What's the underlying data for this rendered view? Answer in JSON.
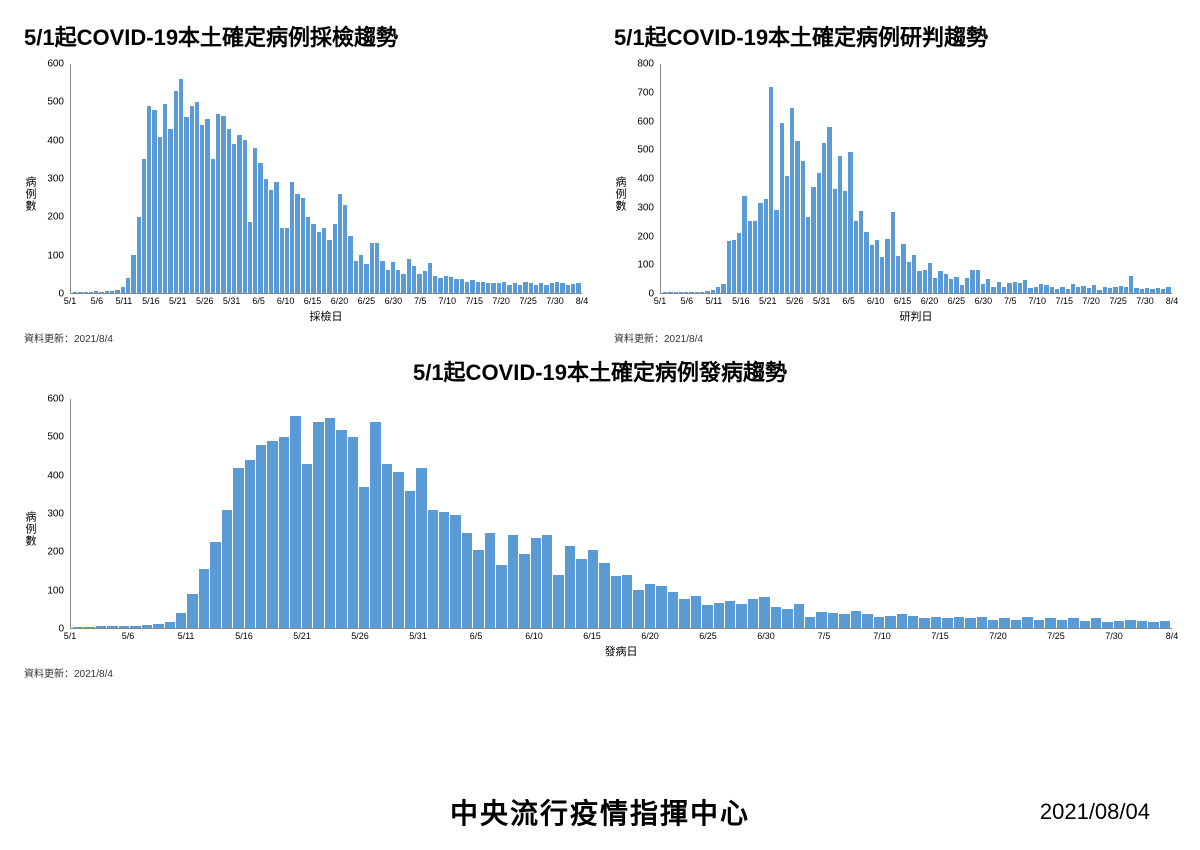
{
  "colors": {
    "bar": "#5b9bd5",
    "axis": "#888888",
    "background": "#ffffff",
    "text": "#000000"
  },
  "x_categories": [
    "5/1",
    "5/6",
    "5/11",
    "5/16",
    "5/21",
    "5/26",
    "5/31",
    "6/5",
    "6/10",
    "6/15",
    "6/20",
    "6/25",
    "6/30",
    "7/5",
    "7/10",
    "7/15",
    "7/20",
    "7/25",
    "7/30",
    "8/4"
  ],
  "charts": {
    "sampling": {
      "title": "5/1起COVID-19本土確定病例採檢趨勢",
      "ylabel": "病例數",
      "xlabel": "採檢日",
      "ylim": [
        0,
        600
      ],
      "ytick_step": 100,
      "update": "資料更新：2021/8/4",
      "values": [
        2,
        3,
        2,
        3,
        4,
        3,
        4,
        5,
        8,
        15,
        40,
        100,
        200,
        350,
        490,
        480,
        410,
        495,
        430,
        530,
        560,
        460,
        490,
        500,
        440,
        455,
        350,
        470,
        465,
        430,
        390,
        415,
        400,
        185,
        380,
        340,
        300,
        270,
        290,
        170,
        170,
        290,
        260,
        250,
        200,
        180,
        160,
        170,
        140,
        180,
        260,
        230,
        150,
        85,
        100,
        75,
        130,
        130,
        85,
        60,
        80,
        60,
        50,
        90,
        70,
        50,
        58,
        78,
        45,
        40,
        45,
        42,
        38,
        38,
        30,
        35,
        28,
        30,
        25,
        27,
        25,
        28,
        22,
        25,
        20,
        30,
        25,
        22,
        25,
        20,
        25,
        28,
        25,
        20,
        23,
        25
      ]
    },
    "judgment": {
      "title": "5/1起COVID-19本土確定病例研判趨勢",
      "ylabel": "病例數",
      "xlabel": "研判日",
      "ylim": [
        0,
        800
      ],
      "ytick_step": 100,
      "update": "資料更新：2021/8/4",
      "values": [
        2,
        2,
        3,
        3,
        3,
        4,
        3,
        5,
        6,
        10,
        20,
        30,
        180,
        185,
        210,
        340,
        250,
        250,
        315,
        330,
        720,
        290,
        595,
        410,
        646,
        530,
        460,
        266,
        372,
        420,
        523,
        580,
        364,
        477,
        355,
        492,
        251,
        287,
        214,
        168,
        186,
        127,
        189,
        283,
        129,
        170,
        109,
        133,
        78,
        80,
        104,
        54,
        76,
        65,
        50,
        56,
        28,
        54,
        80,
        79,
        31,
        50,
        22,
        39,
        22,
        34,
        38,
        34,
        47,
        17,
        22,
        30,
        28,
        20,
        15,
        20,
        15,
        33,
        20,
        25,
        18,
        28,
        11,
        22,
        16,
        21,
        24,
        20,
        60,
        18,
        14,
        16,
        14,
        18,
        14,
        22
      ]
    },
    "onset": {
      "title": "5/1起COVID-19本土確定病例發病趨勢",
      "ylabel": "病例數",
      "xlabel": "發病日",
      "ylim": [
        0,
        600
      ],
      "ytick_step": 100,
      "update": "資料更新：2021/8/4",
      "values": [
        2,
        3,
        4,
        5,
        4,
        6,
        8,
        10,
        15,
        40,
        90,
        155,
        225,
        310,
        420,
        440,
        480,
        490,
        500,
        555,
        430,
        540,
        550,
        520,
        500,
        370,
        540,
        430,
        410,
        360,
        420,
        310,
        305,
        295,
        250,
        205,
        250,
        165,
        245,
        195,
        235,
        245,
        140,
        215,
        180,
        205,
        170,
        135,
        140,
        100,
        115,
        110,
        95,
        75,
        85,
        60,
        65,
        70,
        62,
        75,
        80,
        55,
        50,
        62,
        30,
        42,
        40,
        38,
        45,
        38,
        30,
        32,
        38,
        32,
        25,
        30,
        25,
        28,
        25,
        28,
        22,
        25,
        22,
        30,
        20,
        25,
        20,
        25,
        18,
        25,
        15,
        18,
        20,
        18,
        15,
        18
      ]
    }
  },
  "footer": {
    "org": "中央流行疫情指揮中心",
    "date": "2021/08/04"
  }
}
